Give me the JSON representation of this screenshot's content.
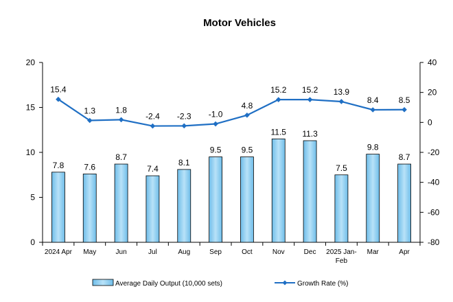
{
  "chart_data": {
    "type": "bar+line",
    "title": "Motor Vehicles",
    "categories": [
      "2024 Apr",
      "May",
      "Jun",
      "Jul",
      "Aug",
      "Sep",
      "Oct",
      "Nov",
      "Dec",
      "2025 Jan-Feb",
      "Mar",
      "Apr"
    ],
    "series": [
      {
        "name": "Average Daily Output (10,000 sets)",
        "type": "bar",
        "axis": "left",
        "values": [
          7.8,
          7.6,
          8.7,
          7.4,
          8.1,
          9.5,
          9.5,
          11.5,
          11.3,
          7.5,
          9.8,
          8.7
        ],
        "labels": [
          "7.8",
          "7.6",
          "8.7",
          "7.4",
          "8.1",
          "9.5",
          "9.5",
          "11.5",
          "11.3",
          "7.5",
          "9.8",
          "8.7"
        ],
        "color": "#8ecdf2"
      },
      {
        "name": "Growth Rate (%)",
        "type": "line",
        "axis": "right",
        "values": [
          15.4,
          1.3,
          1.8,
          -2.4,
          -2.3,
          -1.0,
          4.8,
          15.2,
          15.2,
          13.9,
          8.4,
          8.5
        ],
        "labels": [
          "15.4",
          "1.3",
          "1.8",
          "-2.4",
          "-2.3",
          "-1.0",
          "4.8",
          "15.2",
          "15.2",
          "13.9",
          "8.4",
          "8.5"
        ],
        "color": "#1f6fc4"
      }
    ],
    "y_left": {
      "min": 0,
      "max": 20,
      "ticks": [
        0,
        5,
        10,
        15,
        20
      ],
      "tick_labels": [
        "0",
        "5",
        "10",
        "15",
        "20"
      ]
    },
    "y_right": {
      "min": -80,
      "max": 40,
      "ticks": [
        -80,
        -60,
        -40,
        -20,
        0,
        20,
        40
      ],
      "tick_labels": [
        "-80",
        "-60",
        "-40",
        "-20",
        "0",
        "20",
        "40"
      ]
    },
    "grid": false,
    "legend_position": "bottom"
  }
}
